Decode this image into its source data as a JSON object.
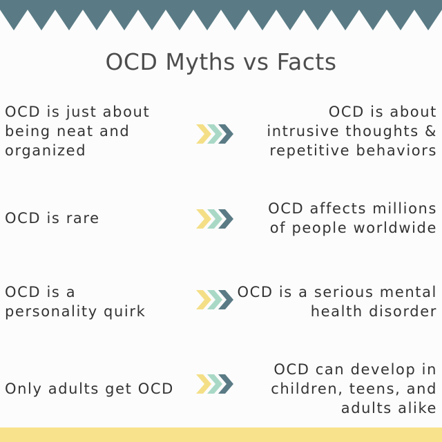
{
  "title": "OCD Myths vs Facts",
  "rows": [
    {
      "myth": "OCD is just about being neat and organized",
      "fact": "OCD is about intrusive thoughts & repetitive behaviors"
    },
    {
      "myth": "OCD is rare",
      "fact": "OCD affects millions of people worldwide"
    },
    {
      "myth": "OCD is a personality quirk",
      "fact": "OCD is a serious mental health disorder"
    },
    {
      "myth": "Only adults get OCD",
      "fact": "OCD can develop in children, teens, and adults alike"
    }
  ],
  "colors": {
    "banner": "#5a7b85",
    "title_text": "#4d4d4d",
    "body_text": "#333333",
    "chevron_yellow": "#f4df87",
    "chevron_mint": "#a9d9c6",
    "chevron_teal": "#5a7b85",
    "footer": "#f8e38c",
    "background": "#fcfcfc"
  },
  "icons": {
    "arrow": "triple-chevron-right-icon",
    "banner": "zigzag-banner"
  }
}
